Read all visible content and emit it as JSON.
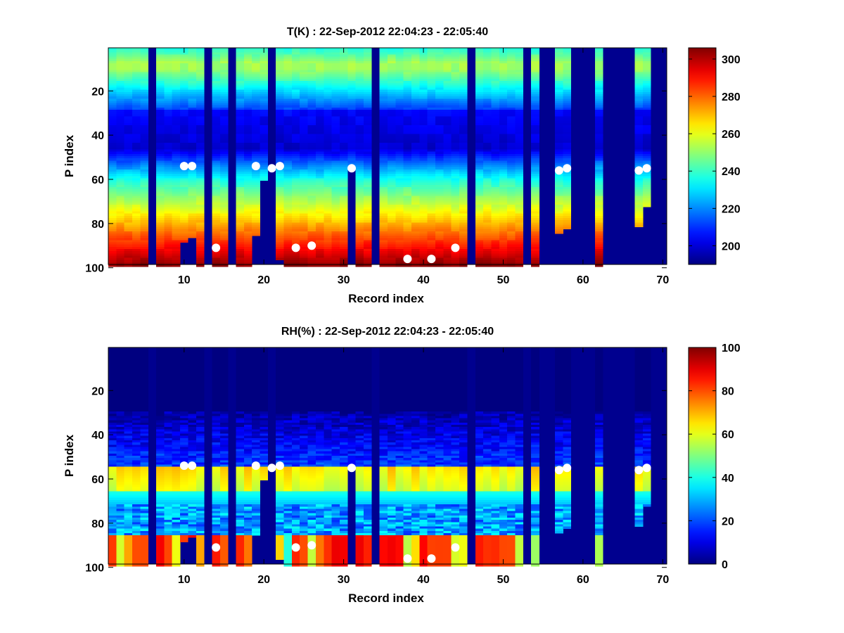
{
  "chart_data": [
    {
      "type": "heatmap",
      "title": "T(K) : 22-Sep-2012 22:04:23 - 22:05:40",
      "xlabel": "Record index",
      "ylabel": "P index",
      "xlim": [
        0.5,
        70.5
      ],
      "ylim": [
        0.5,
        98.5
      ],
      "x_ticks": [
        10,
        20,
        30,
        40,
        50,
        60,
        70
      ],
      "y_ticks": [
        20,
        40,
        60,
        80,
        100
      ],
      "colorbar": {
        "min": 190,
        "max": 306,
        "ticks": [
          200,
          220,
          240,
          260,
          280,
          300
        ]
      },
      "colormap": "jet",
      "profile": {
        "surface_value": 303,
        "top_value": 238,
        "warm_layer_value": 252,
        "cold_value": 199
      },
      "empty_records": [
        6,
        13,
        16,
        21,
        34,
        46,
        53,
        55,
        56,
        59,
        60,
        61,
        63,
        64,
        65,
        66,
        69,
        70
      ],
      "profile_bottom": {
        "1": 99,
        "2": 99,
        "3": 99,
        "4": 99,
        "5": 99,
        "7": 99,
        "8": 99,
        "9": 99,
        "10": 88,
        "11": 86,
        "12": 99,
        "14": 99,
        "15": 99,
        "17": 99,
        "18": 99,
        "19": 85,
        "20": 60,
        "22": 96,
        "23": 99,
        "24": 99,
        "25": 99,
        "26": 99,
        "27": 99,
        "28": 99,
        "29": 99,
        "30": 99,
        "31": 55,
        "32": 99,
        "33": 99,
        "35": 99,
        "36": 99,
        "37": 99,
        "38": 99,
        "39": 99,
        "40": 99,
        "41": 99,
        "42": 99,
        "43": 99,
        "44": 99,
        "45": 99,
        "47": 99,
        "48": 99,
        "49": 99,
        "50": 99,
        "51": 99,
        "52": 99,
        "54": 99,
        "57": 84,
        "58": 82,
        "62": 99,
        "67": 81,
        "68": 72
      },
      "markers": [
        [
          10,
          54
        ],
        [
          11,
          54
        ],
        [
          14,
          91
        ],
        [
          19,
          54
        ],
        [
          21,
          55
        ],
        [
          22,
          54
        ],
        [
          24,
          91
        ],
        [
          26,
          90
        ],
        [
          31,
          55
        ],
        [
          38,
          96
        ],
        [
          41,
          96
        ],
        [
          44,
          91
        ],
        [
          57,
          56
        ],
        [
          58,
          55
        ],
        [
          67,
          56
        ],
        [
          68,
          55
        ]
      ]
    },
    {
      "type": "heatmap",
      "title": "RH(%) : 22-Sep-2012 22:04:23 - 22:05:40",
      "xlabel": "Record index",
      "ylabel": "P index",
      "xlim": [
        0.5,
        70.5
      ],
      "ylim": [
        0.5,
        98.5
      ],
      "x_ticks": [
        10,
        20,
        30,
        40,
        50,
        60,
        70
      ],
      "y_ticks": [
        20,
        40,
        60,
        80,
        100
      ],
      "colorbar": {
        "min": 0,
        "max": 100,
        "ticks": [
          0,
          20,
          40,
          60,
          80,
          100
        ]
      },
      "colormap": "jet",
      "profile": {
        "upper_value": 0,
        "moist_layer_value": 65,
        "mid_value": 28,
        "surface_value": 90
      },
      "empty_records": [
        6,
        13,
        16,
        21,
        34,
        46,
        53,
        55,
        56,
        59,
        60,
        61,
        63,
        64,
        65,
        66,
        69,
        70
      ],
      "profile_bottom": {
        "1": 99,
        "2": 99,
        "3": 99,
        "4": 99,
        "5": 99,
        "7": 99,
        "8": 99,
        "9": 99,
        "10": 88,
        "11": 86,
        "12": 99,
        "14": 99,
        "15": 99,
        "17": 99,
        "18": 99,
        "19": 85,
        "20": 60,
        "22": 96,
        "23": 99,
        "24": 99,
        "25": 99,
        "26": 99,
        "27": 99,
        "28": 99,
        "29": 99,
        "30": 99,
        "31": 55,
        "32": 99,
        "33": 99,
        "35": 99,
        "36": 99,
        "37": 99,
        "38": 99,
        "39": 99,
        "40": 99,
        "41": 99,
        "42": 99,
        "43": 99,
        "44": 99,
        "45": 99,
        "47": 99,
        "48": 99,
        "49": 99,
        "50": 99,
        "51": 99,
        "52": 99,
        "54": 99,
        "57": 84,
        "58": 82,
        "62": 99,
        "67": 81,
        "68": 72
      },
      "markers": [
        [
          10,
          54
        ],
        [
          11,
          54
        ],
        [
          14,
          91
        ],
        [
          19,
          54
        ],
        [
          21,
          55
        ],
        [
          22,
          54
        ],
        [
          24,
          91
        ],
        [
          26,
          90
        ],
        [
          31,
          55
        ],
        [
          38,
          96
        ],
        [
          41,
          96
        ],
        [
          44,
          91
        ],
        [
          57,
          56
        ],
        [
          58,
          55
        ],
        [
          67,
          56
        ],
        [
          68,
          55
        ]
      ]
    }
  ]
}
